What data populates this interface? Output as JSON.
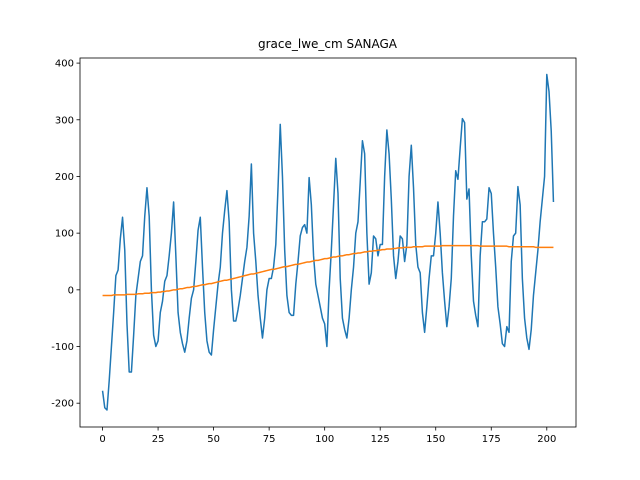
{
  "chart_data": {
    "type": "line",
    "title": "grace_lwe_cm SANAGA",
    "x": [
      0,
      1,
      2,
      3,
      4,
      5,
      6,
      7,
      8,
      9,
      10,
      11,
      12,
      13,
      14,
      15,
      16,
      17,
      18,
      19,
      20,
      21,
      22,
      23,
      24,
      25,
      26,
      27,
      28,
      29,
      30,
      31,
      32,
      33,
      34,
      35,
      36,
      37,
      38,
      39,
      40,
      41,
      42,
      43,
      44,
      45,
      46,
      47,
      48,
      49,
      50,
      51,
      52,
      53,
      54,
      55,
      56,
      57,
      58,
      59,
      60,
      61,
      62,
      63,
      64,
      65,
      66,
      67,
      68,
      69,
      70,
      71,
      72,
      73,
      74,
      75,
      76,
      77,
      78,
      79,
      80,
      81,
      82,
      83,
      84,
      85,
      86,
      87,
      88,
      89,
      90,
      91,
      92,
      93,
      94,
      95,
      96,
      97,
      98,
      99,
      100,
      101,
      102,
      103,
      104,
      105,
      106,
      107,
      108,
      109,
      110,
      111,
      112,
      113,
      114,
      115,
      116,
      117,
      118,
      119,
      120,
      121,
      122,
      123,
      124,
      125,
      126,
      127,
      128,
      129,
      130,
      131,
      132,
      133,
      134,
      135,
      136,
      137,
      138,
      139,
      140,
      141,
      142,
      143,
      144,
      145,
      146,
      147,
      148,
      149,
      150,
      151,
      152,
      153,
      154,
      155,
      156,
      157,
      158,
      159,
      160,
      161,
      162,
      163,
      164,
      165,
      166,
      167,
      168,
      169,
      170,
      171,
      172,
      173,
      174,
      175,
      176,
      177,
      178,
      179,
      180,
      181,
      182,
      183,
      184,
      185,
      186,
      187,
      188,
      189,
      190,
      191,
      192,
      193,
      194,
      195,
      196,
      197,
      198,
      199,
      200,
      201,
      202,
      203
    ],
    "series": [
      {
        "color": "#1f77b4",
        "values": [
          -178,
          -208,
          -212,
          -160,
          -100,
          -40,
          25,
          35,
          90,
          128,
          70,
          -60,
          -145,
          -145,
          -80,
          -10,
          20,
          50,
          60,
          130,
          180,
          130,
          0,
          -80,
          -100,
          -90,
          -40,
          -20,
          15,
          25,
          60,
          100,
          155,
          60,
          -40,
          -75,
          -95,
          -110,
          -90,
          -50,
          -15,
          0,
          50,
          105,
          128,
          40,
          -40,
          -90,
          -110,
          -115,
          -70,
          -30,
          10,
          40,
          100,
          140,
          175,
          120,
          0,
          -55,
          -55,
          -35,
          -10,
          20,
          50,
          75,
          130,
          222,
          100,
          50,
          -10,
          -50,
          -85,
          -50,
          0,
          20,
          20,
          40,
          80,
          180,
          292,
          200,
          70,
          -10,
          -40,
          -45,
          -45,
          10,
          50,
          95,
          110,
          115,
          100,
          198,
          150,
          60,
          10,
          -10,
          -30,
          -50,
          -60,
          -100,
          0,
          70,
          150,
          232,
          170,
          20,
          -50,
          -70,
          -85,
          -50,
          0,
          40,
          100,
          120,
          190,
          263,
          240,
          100,
          10,
          30,
          95,
          90,
          60,
          80,
          80,
          200,
          282,
          240,
          160,
          60,
          20,
          50,
          95,
          90,
          50,
          80,
          200,
          255,
          180,
          80,
          40,
          30,
          -40,
          -75,
          -30,
          20,
          60,
          60,
          100,
          155,
          100,
          30,
          -20,
          -65,
          -30,
          20,
          130,
          210,
          195,
          250,
          302,
          295,
          160,
          178,
          60,
          -20,
          -45,
          -65,
          60,
          120,
          120,
          125,
          180,
          170,
          100,
          40,
          -30,
          -60,
          -95,
          -100,
          -65,
          -75,
          50,
          95,
          100,
          182,
          150,
          20,
          -50,
          -85,
          -105,
          -70,
          -10,
          30,
          70,
          120,
          160,
          200,
          380,
          350,
          280,
          155
        ]
      },
      {
        "color": "#ff7f0e",
        "values": [
          -10,
          -10,
          -10,
          -10,
          -10,
          -9,
          -9,
          -9,
          -9,
          -9,
          -9,
          -8,
          -8,
          -8,
          -8,
          -8,
          -7,
          -7,
          -7,
          -6,
          -6,
          -6,
          -5,
          -5,
          -5,
          -4,
          -4,
          -3,
          -3,
          -2,
          -2,
          -1,
          0,
          0,
          1,
          2,
          2,
          3,
          4,
          4,
          5,
          6,
          6,
          7,
          8,
          9,
          9,
          10,
          11,
          11,
          12,
          13,
          14,
          15,
          16,
          17,
          17,
          18,
          19,
          20,
          21,
          22,
          23,
          24,
          25,
          26,
          27,
          28,
          28,
          29,
          30,
          31,
          32,
          33,
          34,
          35,
          36,
          36,
          37,
          38,
          39,
          40,
          41,
          41,
          42,
          43,
          44,
          45,
          45,
          46,
          47,
          48,
          49,
          49,
          50,
          51,
          52,
          52,
          53,
          54,
          55,
          55,
          56,
          57,
          58,
          58,
          59,
          60,
          60,
          61,
          62,
          62,
          63,
          64,
          64,
          65,
          65,
          66,
          67,
          67,
          68,
          68,
          69,
          69,
          70,
          70,
          71,
          71,
          72,
          72,
          72,
          73,
          73,
          74,
          74,
          74,
          75,
          75,
          75,
          75,
          76,
          76,
          76,
          76,
          76,
          77,
          77,
          77,
          77,
          77,
          77,
          77,
          77,
          78,
          78,
          78,
          78,
          78,
          78,
          78,
          78,
          78,
          78,
          78,
          78,
          78,
          78,
          78,
          78,
          78,
          77,
          77,
          77,
          77,
          77,
          77,
          77,
          77,
          77,
          77,
          77,
          77,
          77,
          76,
          76,
          76,
          76,
          76,
          76,
          76,
          76,
          76,
          76,
          76,
          76,
          75,
          75,
          75,
          75,
          75,
          75,
          75,
          75,
          75
        ]
      }
    ],
    "xlim": [
      -10.15,
      213.15
    ],
    "xticks": [
      0,
      25,
      50,
      75,
      100,
      125,
      150,
      175,
      200
    ],
    "ylim": [
      -242,
      409
    ],
    "yticks": [
      -200,
      -100,
      0,
      100,
      200,
      300,
      400
    ]
  }
}
